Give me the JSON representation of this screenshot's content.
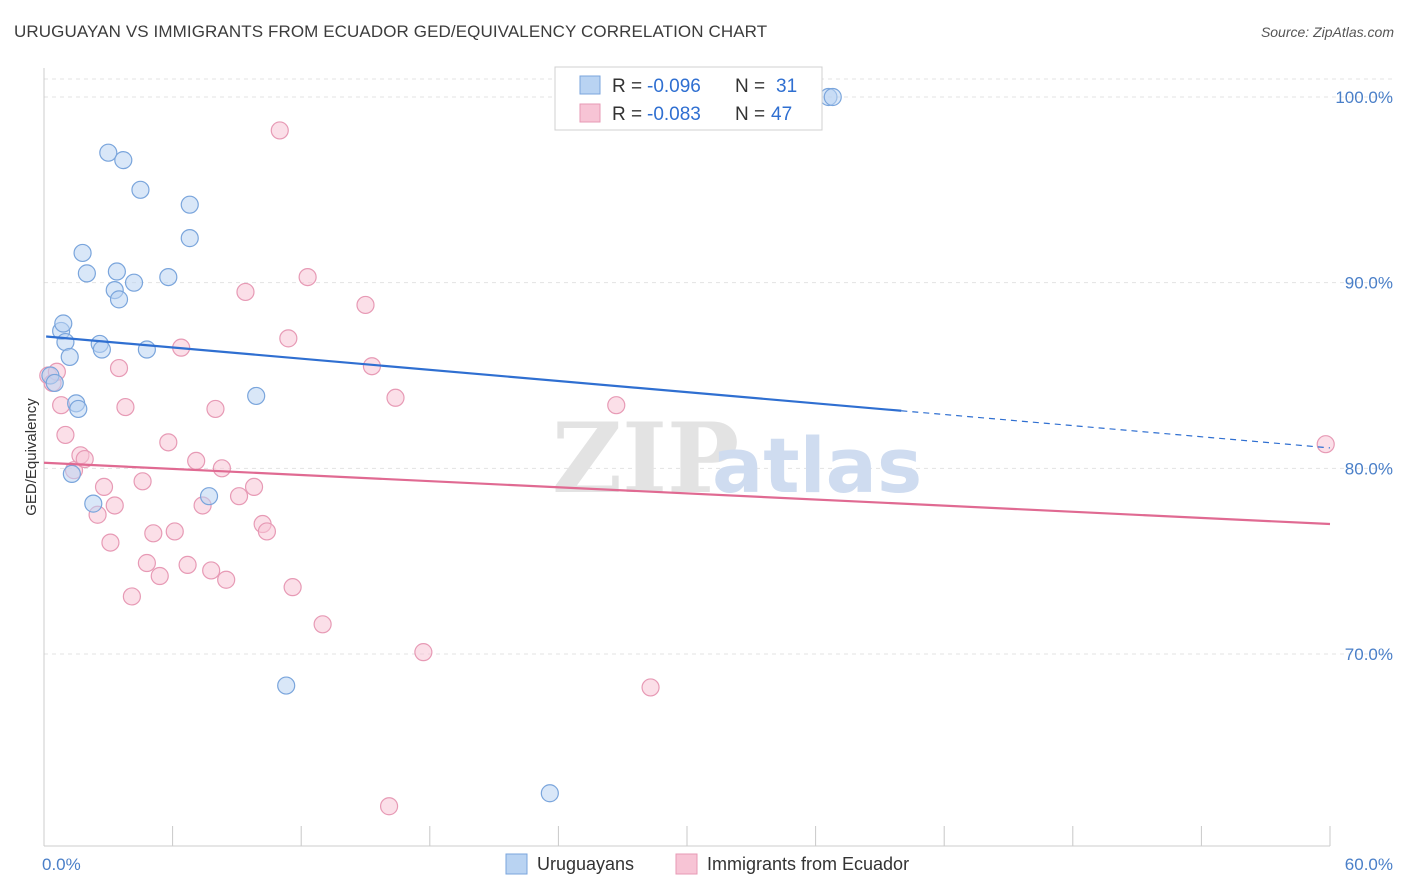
{
  "title": "URUGUAYAN VS IMMIGRANTS FROM ECUADOR GED/EQUIVALENCY CORRELATION CHART",
  "source": "Source: ZipAtlas.com",
  "watermark": {
    "zip": "ZIP",
    "atlas": "atlas"
  },
  "colors": {
    "blue_fill": "#b9d3f2",
    "blue_stroke": "#7aa5dc",
    "blue_line": "#2f6fd1",
    "pink_fill": "#f7c4d5",
    "pink_stroke": "#e79ab5",
    "pink_line": "#e06a92",
    "grid": "#e3e3e3",
    "tick_label": "#4a7fc8"
  },
  "legend": {
    "rows": [
      {
        "r_label": "R = ",
        "r_value": "-0.096",
        "n_label": "N = ",
        "n_value": "31"
      },
      {
        "r_label": "R = ",
        "r_value": "-0.083",
        "n_label": "N = ",
        "n_value": "47"
      }
    ]
  },
  "chart_data": {
    "type": "scatter",
    "title": "URUGUAYAN VS IMMIGRANTS FROM ECUADOR GED/EQUIVALENCY CORRELATION CHART",
    "xlabel": "",
    "ylabel": "GED/Equivalency",
    "xlim": [
      0,
      60
    ],
    "ylim": [
      60.5,
      101.5
    ],
    "x_tick_labels": [
      {
        "value": 0,
        "label": "0.0%"
      },
      {
        "value": 60,
        "label": "60.0%"
      }
    ],
    "y_ticks": [
      {
        "value": 100,
        "label": "100.0%"
      },
      {
        "value": 90,
        "label": "90.0%"
      },
      {
        "value": 80,
        "label": "80.0%"
      },
      {
        "value": 70,
        "label": "70.0%"
      }
    ],
    "x_minor_ticks": [
      0,
      6,
      12,
      18,
      24,
      30,
      36,
      42,
      48,
      54,
      60
    ],
    "grid": true,
    "legend_position": "bottom",
    "series": [
      {
        "name": "Uruguayans",
        "color": "#7aa5dc",
        "trend": {
          "x0": 0.1,
          "y0": 87.1,
          "x1": 40,
          "y1": 83.1,
          "dash_to_x": 60,
          "dash_to_y": 81.1
        },
        "points": [
          [
            0.3,
            85.0
          ],
          [
            0.5,
            84.6
          ],
          [
            0.8,
            87.4
          ],
          [
            0.9,
            87.8
          ],
          [
            1.0,
            86.8
          ],
          [
            1.2,
            86.0
          ],
          [
            1.3,
            79.7
          ],
          [
            1.5,
            83.5
          ],
          [
            1.6,
            83.2
          ],
          [
            1.8,
            91.6
          ],
          [
            2.0,
            90.5
          ],
          [
            2.3,
            78.1
          ],
          [
            2.6,
            86.7
          ],
          [
            2.7,
            86.4
          ],
          [
            3.0,
            97.0
          ],
          [
            3.3,
            89.6
          ],
          [
            3.4,
            90.6
          ],
          [
            3.5,
            89.1
          ],
          [
            3.7,
            96.6
          ],
          [
            4.2,
            90.0
          ],
          [
            4.5,
            95.0
          ],
          [
            4.8,
            86.4
          ],
          [
            5.8,
            90.3
          ],
          [
            6.8,
            94.2
          ],
          [
            6.8,
            92.4
          ],
          [
            7.7,
            78.5
          ],
          [
            9.9,
            83.9
          ],
          [
            11.3,
            68.3
          ],
          [
            23.6,
            62.5
          ],
          [
            36.6,
            100.0
          ],
          [
            36.8,
            100.0
          ]
        ]
      },
      {
        "name": "Immigrants from Ecuador",
        "color": "#e79ab5",
        "trend": {
          "x0": 0,
          "y0": 80.3,
          "x1": 60,
          "y1": 77.0
        },
        "points": [
          [
            0.2,
            85.0
          ],
          [
            0.4,
            84.6
          ],
          [
            0.8,
            83.4
          ],
          [
            1.0,
            81.8
          ],
          [
            1.4,
            79.9
          ],
          [
            1.7,
            80.7
          ],
          [
            1.9,
            80.5
          ],
          [
            2.5,
            77.5
          ],
          [
            2.8,
            79.0
          ],
          [
            3.1,
            76.0
          ],
          [
            3.3,
            78.0
          ],
          [
            3.5,
            85.4
          ],
          [
            3.8,
            83.3
          ],
          [
            4.1,
            73.1
          ],
          [
            4.6,
            79.3
          ],
          [
            4.8,
            74.9
          ],
          [
            5.1,
            76.5
          ],
          [
            5.4,
            74.2
          ],
          [
            5.8,
            81.4
          ],
          [
            6.1,
            76.6
          ],
          [
            6.4,
            86.5
          ],
          [
            6.7,
            74.8
          ],
          [
            7.1,
            80.4
          ],
          [
            7.4,
            78.0
          ],
          [
            7.8,
            74.5
          ],
          [
            8.0,
            83.2
          ],
          [
            8.3,
            80.0
          ],
          [
            8.5,
            74.0
          ],
          [
            9.1,
            78.5
          ],
          [
            9.4,
            89.5
          ],
          [
            9.8,
            79.0
          ],
          [
            10.2,
            77.0
          ],
          [
            10.4,
            76.6
          ],
          [
            11.0,
            98.2
          ],
          [
            11.4,
            87.0
          ],
          [
            11.6,
            73.6
          ],
          [
            12.3,
            90.3
          ],
          [
            13.0,
            71.6
          ],
          [
            15.0,
            88.8
          ],
          [
            15.3,
            85.5
          ],
          [
            16.1,
            61.8
          ],
          [
            16.4,
            83.8
          ],
          [
            17.7,
            70.1
          ],
          [
            26.7,
            83.4
          ],
          [
            28.3,
            68.2
          ],
          [
            59.8,
            81.3
          ],
          [
            0.6,
            85.2
          ]
        ]
      }
    ]
  }
}
